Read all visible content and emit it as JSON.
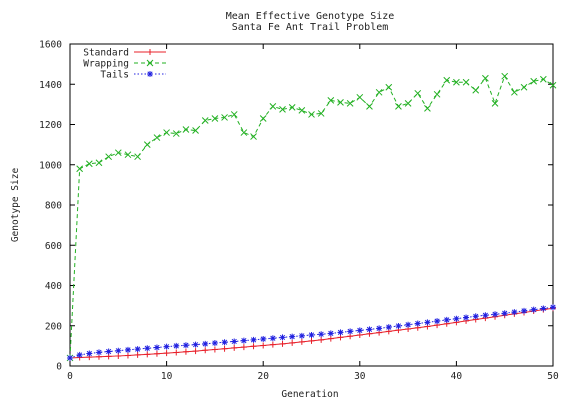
{
  "chart_data": {
    "type": "line",
    "title": "Mean Effective Genotype Size",
    "subtitle": "Santa Fe Ant Trail Problem",
    "xlabel": "Generation",
    "ylabel": "Genotype Size",
    "xlim": [
      0,
      50
    ],
    "ylim": [
      0,
      1600
    ],
    "xticks": [
      0,
      10,
      20,
      30,
      40,
      50
    ],
    "yticks": [
      0,
      200,
      400,
      600,
      800,
      1000,
      1200,
      1400,
      1600
    ],
    "grid": false,
    "legend_position": "top-left",
    "x": [
      0,
      1,
      2,
      3,
      4,
      5,
      6,
      7,
      8,
      9,
      10,
      11,
      12,
      13,
      14,
      15,
      16,
      17,
      18,
      19,
      20,
      21,
      22,
      23,
      24,
      25,
      26,
      27,
      28,
      29,
      30,
      31,
      32,
      33,
      34,
      35,
      36,
      37,
      38,
      39,
      40,
      41,
      42,
      43,
      44,
      45,
      46,
      47,
      48,
      49,
      50
    ],
    "series": [
      {
        "name": "Standard",
        "color": "#e8202a",
        "marker": "plus",
        "dash": "solid",
        "values": [
          40,
          42,
          44,
          46,
          48,
          50,
          52,
          55,
          58,
          61,
          64,
          67,
          71,
          74,
          78,
          82,
          86,
          90,
          94,
          98,
          102,
          106,
          110,
          115,
          120,
          125,
          130,
          136,
          142,
          148,
          154,
          160,
          166,
          172,
          178,
          184,
          190,
          196,
          203,
          210,
          217,
          224,
          231,
          238,
          245,
          252,
          259,
          266,
          273,
          280,
          287
        ]
      },
      {
        "name": "Wrapping",
        "color": "#22b022",
        "marker": "x",
        "dash": "dashed",
        "values": [
          40,
          980,
          1005,
          1010,
          1040,
          1060,
          1050,
          1040,
          1100,
          1135,
          1160,
          1155,
          1175,
          1170,
          1220,
          1230,
          1235,
          1250,
          1160,
          1140,
          1230,
          1290,
          1275,
          1285,
          1270,
          1250,
          1255,
          1320,
          1310,
          1305,
          1335,
          1290,
          1360,
          1385,
          1290,
          1305,
          1355,
          1280,
          1350,
          1420,
          1410,
          1410,
          1370,
          1430,
          1305,
          1440,
          1360,
          1385,
          1415,
          1425,
          1395
        ]
      },
      {
        "name": "Tails",
        "color": "#2020e0",
        "marker": "star",
        "dash": "dotted",
        "values": [
          40,
          55,
          62,
          68,
          72,
          76,
          80,
          84,
          88,
          92,
          96,
          100,
          103,
          106,
          110,
          114,
          118,
          122,
          126,
          130,
          134,
          138,
          142,
          146,
          150,
          154,
          158,
          162,
          167,
          172,
          177,
          182,
          187,
          193,
          199,
          205,
          211,
          217,
          223,
          229,
          235,
          241,
          247,
          252,
          257,
          262,
          268,
          274,
          280,
          286,
          292
        ]
      }
    ]
  }
}
